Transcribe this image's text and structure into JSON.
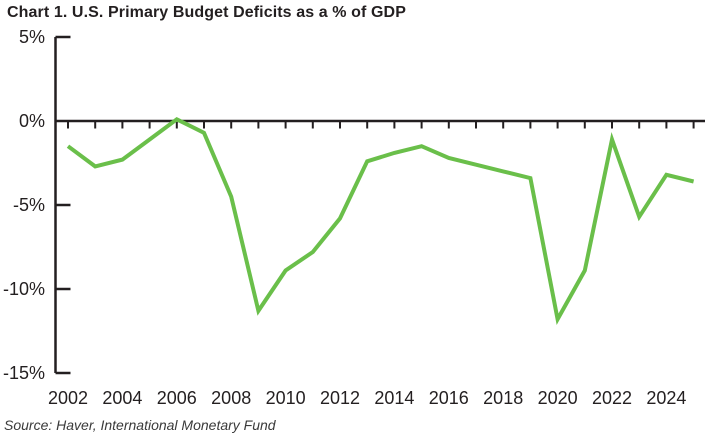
{
  "chart_data": {
    "type": "line",
    "title": "Chart 1. U.S. Primary Budget Deficits as a % of GDP",
    "source": "Source: Haver, International Monetary Fund",
    "series_name": "U.S. primary budget deficit as % of GDP",
    "x": [
      2002,
      2003,
      2004,
      2005,
      2006,
      2007,
      2008,
      2009,
      2010,
      2011,
      2012,
      2013,
      2014,
      2015,
      2016,
      2017,
      2018,
      2019,
      2020,
      2021,
      2022,
      2023,
      2024,
      2025
    ],
    "values": [
      -1.5,
      -2.7,
      -2.3,
      -1.1,
      0.1,
      -0.7,
      -4.5,
      -11.3,
      -8.9,
      -7.8,
      -5.8,
      -2.4,
      -1.9,
      -1.5,
      -2.2,
      -2.6,
      -3.0,
      -3.4,
      -11.8,
      -8.9,
      -1.1,
      -5.7,
      -3.2,
      -3.6
    ],
    "ylim": [
      -15,
      5
    ],
    "y_ticks": [
      5,
      0,
      -5,
      -10,
      -15
    ],
    "y_tick_labels": [
      "5%",
      "0%",
      "-5%",
      "-10%",
      "-15%"
    ],
    "x_tick_labels": [
      "2002",
      "2004",
      "2006",
      "2008",
      "2010",
      "2012",
      "2014",
      "2016",
      "2018",
      "2020",
      "2022",
      "2024"
    ],
    "xlabel": "",
    "ylabel": "",
    "grid": false,
    "legend": "none",
    "line_color": "#6abf4a",
    "axis_color": "#231f20"
  }
}
